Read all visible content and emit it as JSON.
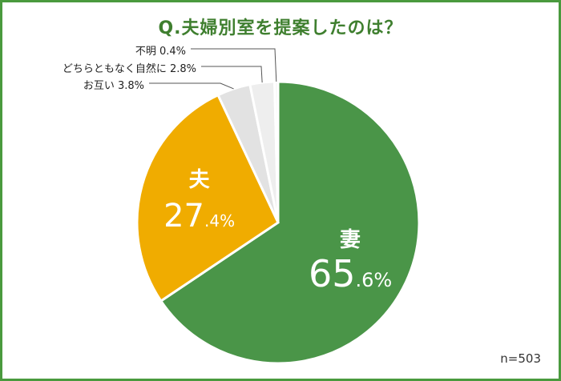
{
  "title": "Q.夫婦別室を提案したのは？",
  "sample_size": "n=503",
  "chart_data": {
    "type": "pie",
    "title": "Q.夫婦別室を提案したのは？",
    "slices": [
      {
        "label": "妻",
        "value": 65.6,
        "value_int": "65",
        "value_dec": ".6%",
        "color": "#4a9548",
        "text_color": "#ffffff"
      },
      {
        "label": "夫",
        "value": 27.4,
        "value_int": "27",
        "value_dec": ".4%",
        "color": "#f0ac00",
        "text_color": "#ffffff"
      },
      {
        "label": "お互い",
        "value": 3.8,
        "display": "お互い 3.8%",
        "color": "#e2e2e2"
      },
      {
        "label": "どちらともなく自然に",
        "value": 2.8,
        "display": "どちらともなく自然に 2.8%",
        "color": "#eeeeee"
      },
      {
        "label": "不明",
        "value": 0.4,
        "display": "不明 0.4%",
        "color": "#f6f6f6"
      }
    ]
  }
}
